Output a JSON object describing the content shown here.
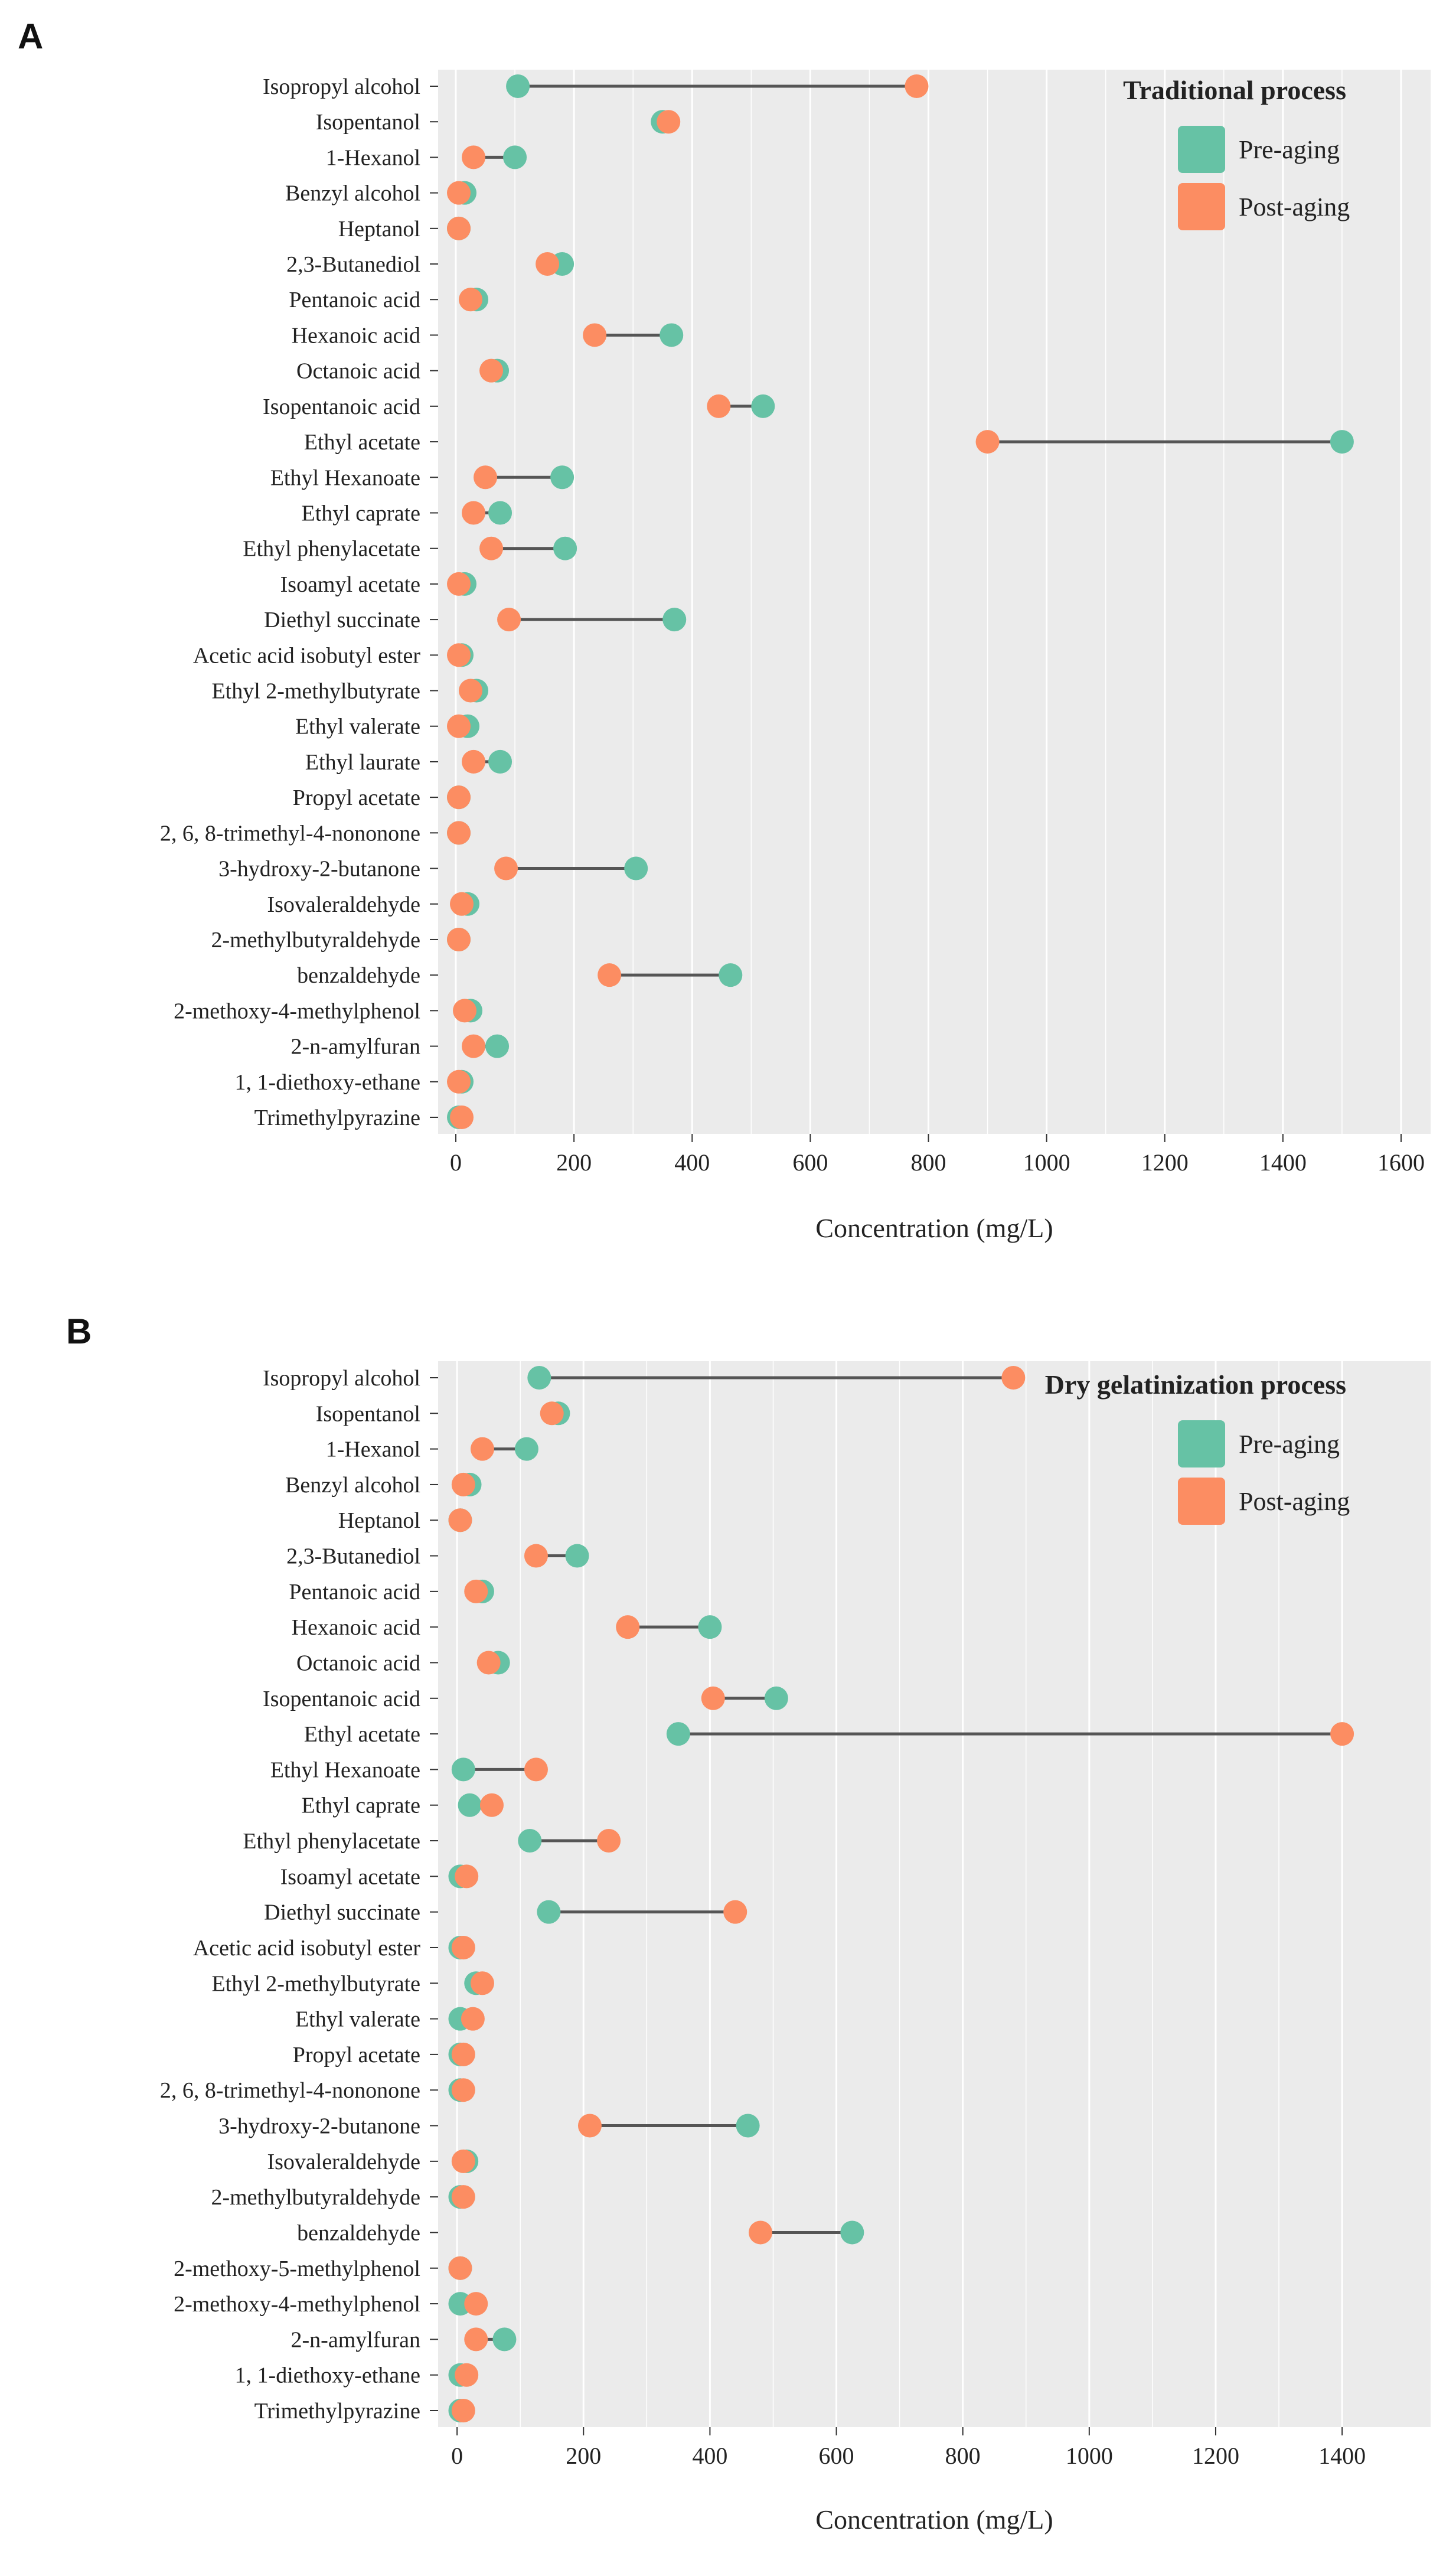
{
  "colors": {
    "pre_aging": "#66c2a5",
    "post_aging": "#fc8d62",
    "panel_bg": "#ebebeb",
    "grid": "#ffffff",
    "segment": "#555555"
  },
  "chart_data": [
    {
      "type": "dumbbell",
      "panel_label": "A",
      "legend_title": "Traditional process",
      "series": [
        {
          "name": "Pre-aging",
          "key": "pre"
        },
        {
          "name": "Post-aging",
          "key": "post"
        }
      ],
      "xlabel": "Concentration (mg/L)",
      "xlim": [
        -30,
        1650
      ],
      "xticks": [
        0,
        200,
        400,
        600,
        800,
        1000,
        1200,
        1400,
        1600
      ],
      "tick_labels": [
        "0",
        "200",
        "400",
        "600",
        "800",
        "1000",
        "1200",
        "1400",
        "1600"
      ],
      "categories": [
        "Isopropyl alcohol",
        "Isopentanol",
        "1-Hexanol",
        "Benzyl alcohol",
        "Heptanol",
        "2,3-Butanediol",
        "Pentanoic acid",
        "Hexanoic acid",
        "Octanoic acid",
        "Isopentanoic acid",
        "Ethyl acetate",
        "Ethyl Hexanoate",
        "Ethyl caprate",
        "Ethyl phenylacetate",
        "Isoamyl acetate",
        "Diethyl succinate",
        "Acetic acid isobutyl ester",
        "Ethyl 2-methylbutyrate",
        "Ethyl valerate",
        "Ethyl laurate",
        "Propyl acetate",
        "2, 6, 8-trimethyl-4-nononone",
        "3-hydroxy-2-butanone",
        "Isovaleraldehyde",
        "2-methylbutyraldehyde",
        "benzaldehyde",
        "2-methoxy-4-methylphenol",
        "2-n-amylfuran",
        "1, 1-diethoxy-ethane",
        "Trimethylpyrazine"
      ],
      "pre": [
        105,
        350,
        100,
        15,
        5,
        180,
        35,
        365,
        70,
        520,
        1500,
        180,
        75,
        185,
        15,
        370,
        10,
        35,
        20,
        75,
        5,
        5,
        305,
        20,
        5,
        465,
        25,
        70,
        10,
        5
      ],
      "post": [
        780,
        360,
        30,
        5,
        5,
        155,
        25,
        235,
        60,
        445,
        900,
        50,
        30,
        60,
        5,
        90,
        5,
        25,
        5,
        30,
        5,
        5,
        85,
        10,
        5,
        260,
        15,
        30,
        5,
        10
      ]
    },
    {
      "type": "dumbbell",
      "panel_label": "B",
      "legend_title": "Dry gelatinization process",
      "series": [
        {
          "name": "Pre-aging",
          "key": "pre"
        },
        {
          "name": "Post-aging",
          "key": "post"
        }
      ],
      "xlabel": "Concentration (mg/L)",
      "xlim": [
        -30,
        1540
      ],
      "xticks": [
        0,
        200,
        400,
        600,
        800,
        1000,
        1200,
        1400
      ],
      "tick_labels": [
        "0",
        "200",
        "400",
        "600",
        "800",
        "1000",
        "1200",
        "1400"
      ],
      "categories": [
        "Isopropyl alcohol",
        "Isopentanol",
        "1-Hexanol",
        "Benzyl alcohol",
        "Heptanol",
        "2,3-Butanediol",
        "Pentanoic acid",
        "Hexanoic acid",
        "Octanoic acid",
        "Isopentanoic acid",
        "Ethyl acetate",
        "Ethyl Hexanoate",
        "Ethyl caprate",
        "Ethyl phenylacetate",
        "Isoamyl acetate",
        "Diethyl succinate",
        "Acetic acid isobutyl ester",
        "Ethyl 2-methylbutyrate",
        "Ethyl valerate",
        "Propyl acetate",
        "2, 6, 8-trimethyl-4-nononone",
        "3-hydroxy-2-butanone",
        "Isovaleraldehyde",
        "2-methylbutyraldehyde",
        "benzaldehyde",
        "2-methoxy-5-methylphenol",
        "2-methoxy-4-methylphenol",
        "2-n-amylfuran",
        "1, 1-diethoxy-ethane",
        "Trimethylpyrazine"
      ],
      "pre": [
        130,
        160,
        110,
        20,
        5,
        190,
        40,
        400,
        65,
        505,
        350,
        10,
        20,
        115,
        5,
        145,
        5,
        30,
        5,
        5,
        5,
        460,
        15,
        5,
        625,
        5,
        5,
        75,
        5,
        5
      ],
      "post": [
        880,
        150,
        40,
        10,
        5,
        125,
        30,
        270,
        50,
        405,
        1400,
        125,
        55,
        240,
        15,
        440,
        10,
        40,
        25,
        10,
        10,
        210,
        10,
        10,
        480,
        5,
        30,
        30,
        15,
        10
      ]
    }
  ]
}
